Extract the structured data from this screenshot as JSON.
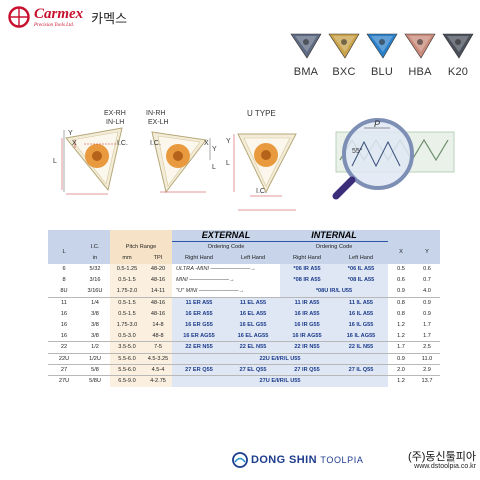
{
  "header": {
    "brand_name": "Carmex",
    "brand_sub": "Precision Tools Ltd.",
    "brand_kr": "카멕스"
  },
  "grades": [
    {
      "label": "BMA",
      "color": "#5d6a82"
    },
    {
      "label": "BXC",
      "color": "#c9a24a"
    },
    {
      "label": "BLU",
      "color": "#2a7fc9"
    },
    {
      "label": "HBA",
      "color": "#c98a7a"
    },
    {
      "label": "K20",
      "color": "#4a4f5a"
    }
  ],
  "diagrams": {
    "ex_rh": "EX-RH",
    "in_lh": "IN-LH",
    "in_rh": "IN-RH",
    "ex_lh": "EX-LH",
    "u_type": "U TYPE",
    "lc": "I.C.",
    "lc2": "I.C.",
    "x": "X",
    "y": "Y",
    "l": "L",
    "x2": "X",
    "y2": "Y",
    "l2": "L",
    "y3": "Y",
    "l3": "L",
    "lc3": "I.C.",
    "p": "P",
    "angle": "55°"
  },
  "table": {
    "headers": {
      "l": "L",
      "ic": "I.C.",
      "in": "in",
      "pitch_range": "Pitch Range",
      "mm": "mm",
      "tpi": "TPI",
      "external": "EXTERNAL",
      "internal": "INTERNAL",
      "ordering_code": "Ordering Code",
      "ordering_code2": "Ordering Code",
      "right_hand": "Right Hand",
      "left_hand": "Left Hand",
      "right_hand2": "Right Hand",
      "left_hand2": "Left Hand",
      "x": "X",
      "y": "Y"
    },
    "rows": [
      {
        "l": "6",
        "ic": "5/32",
        "mm": "0.5-1.25",
        "tpi": "48-20",
        "hint": "ULTRA -MINI",
        "int_rh": "*06 IR A55",
        "int_lh": "*06 IL A55",
        "x": "0.5",
        "y": "0.6"
      },
      {
        "l": "8",
        "ic": "3/16",
        "mm": "0.5-1.5",
        "tpi": "48-16",
        "hint": "MINI",
        "int_rh": "*08 IR A55",
        "int_lh": "*08 IL A55",
        "x": "0.6",
        "y": "0.7"
      },
      {
        "l": "8U",
        "ic": "3/16U",
        "mm": "1.75-2.0",
        "tpi": "14-11",
        "hint": "\"U\" MINI",
        "int_u": "*08U IR/L U55",
        "x": "0.9",
        "y": "4.0"
      },
      {
        "l": "11",
        "ic": "1/4",
        "mm": "0.5-1.5",
        "tpi": "48-16",
        "ext_rh": "11 ER A55",
        "ext_lh": "11 EL A55",
        "int_rh": "11 IR A55",
        "int_lh": "11 IL A55",
        "x": "0.8",
        "y": "0.9"
      },
      {
        "l": "16",
        "ic": "3/8",
        "mm": "0.5-1.5",
        "tpi": "48-16",
        "ext_rh": "16 ER A55",
        "ext_lh": "16 EL A55",
        "int_rh": "16 IR A55",
        "int_lh": "16 IL A55",
        "x": "0.8",
        "y": "0.9"
      },
      {
        "l": "16",
        "ic": "3/8",
        "mm": "1.75-3.0",
        "tpi": "14-8",
        "ext_rh": "16 ER G55",
        "ext_lh": "16 EL G55",
        "int_rh": "16 IR G55",
        "int_lh": "16 IL G55",
        "x": "1.2",
        "y": "1.7"
      },
      {
        "l": "16",
        "ic": "3/8",
        "mm": "0.5-3.0",
        "tpi": "48-8",
        "ext_rh": "16 ER AG55",
        "ext_lh": "16 EL AG55",
        "int_rh": "16 IR AG55",
        "int_lh": "16 IL AG55",
        "x": "1.2",
        "y": "1.7"
      },
      {
        "l": "22",
        "ic": "1/2",
        "mm": "3.5-5.0",
        "tpi": "7-5",
        "ext_rh": "22 ER N55",
        "ext_lh": "22 EL N55",
        "int_rh": "22 IR N55",
        "int_lh": "22 IL N55",
        "x": "1.7",
        "y": "2.5"
      },
      {
        "l": "22U",
        "ic": "1/2U",
        "mm": "5.5-6.0",
        "tpi": "4.5-3.25",
        "ext_u": "22U E/I/R/L U55",
        "x": "0.9",
        "y": "11.0"
      },
      {
        "l": "27",
        "ic": "5/8",
        "mm": "5.5-6.0",
        "tpi": "4.5-4",
        "ext_rh": "27 ER Q55",
        "ext_lh": "27 EL Q55",
        "int_rh": "27 IR Q55",
        "int_lh": "27 IL Q55",
        "x": "2.0",
        "y": "2.9"
      },
      {
        "l": "27U",
        "ic": "5/8U",
        "mm": "6.5-9.0",
        "tpi": "4-2.75",
        "ext_u": "27U E/I/R/L U55",
        "x": "1.2",
        "y": "13.7"
      }
    ]
  },
  "footer": {
    "company": "DONG SHIN",
    "company_suffix": "TOOLPIA",
    "company_kr": "(주)동신툴피아",
    "url": "www.dstoolpia.co.kr"
  },
  "colors": {
    "brand_red": "#c8102e",
    "header_blue": "#c7d4ea",
    "code_blue": "#1a3a8a",
    "pitch_beige": "#fbf0df"
  }
}
